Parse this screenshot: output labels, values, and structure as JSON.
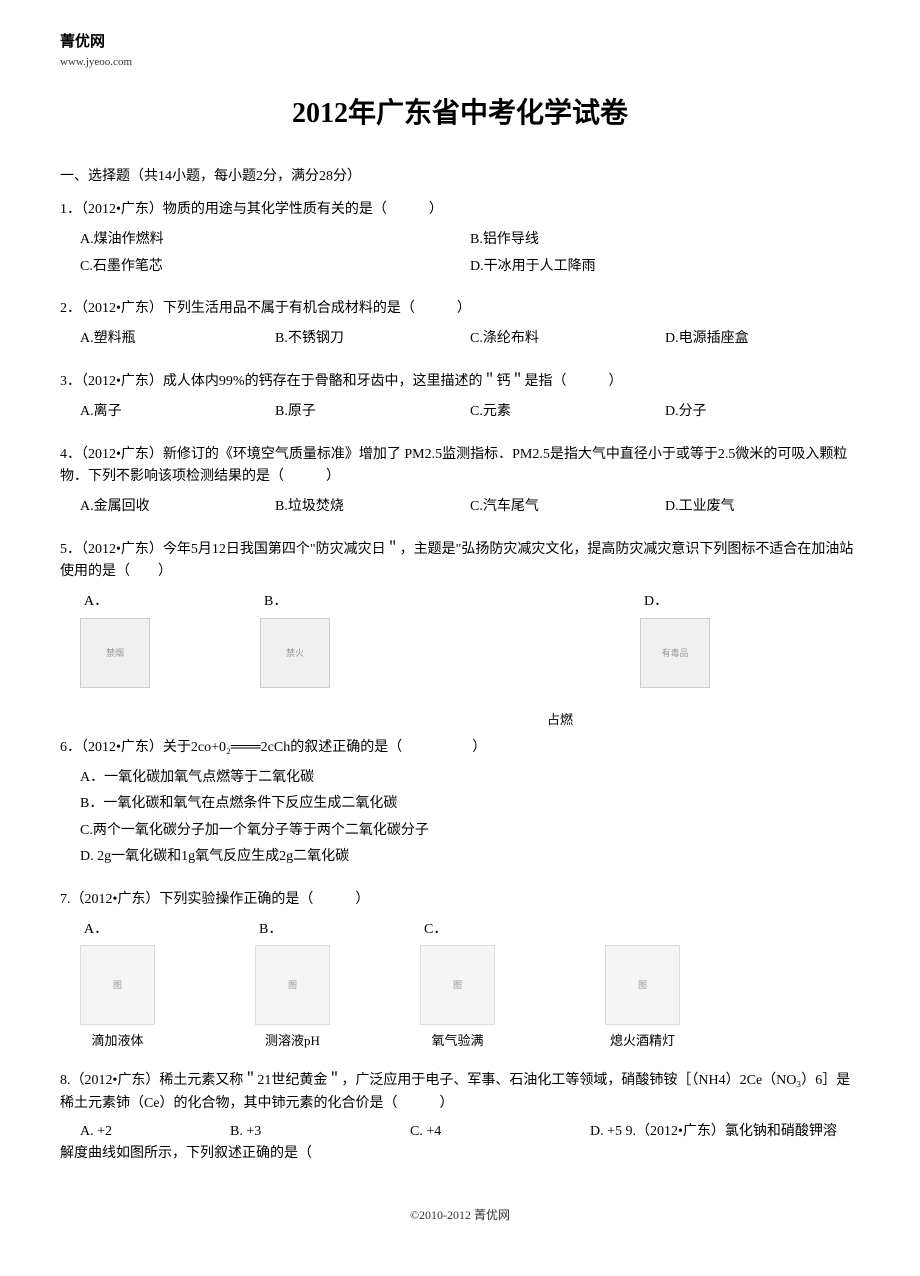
{
  "header": {
    "site_name": "菁优网",
    "site_url": "www.jyeoo.com"
  },
  "title": "2012年广东省中考化学试卷",
  "section1": {
    "header": "一、选择题（共14小题，每小题2分，满分28分）"
  },
  "q1": {
    "text": "1．（2012•广东）物质的用途与其化学性质有关的是（　　　）",
    "a": "A.煤油作燃料",
    "b": "B.铝作导线",
    "c": "C.石墨作笔芯",
    "d": "D.干冰用于人工降雨"
  },
  "q2": {
    "text": "2．（2012•广东）下列生活用品不属于有机合成材料的是（　　　）",
    "a": "A.塑料瓶",
    "b": "B.不锈钢刀",
    "c": "C.涤纶布料",
    "d": "D.电源插座盒"
  },
  "q3": {
    "text": "3．（2012•广东）成人体内99%的钙存在于骨骼和牙齿中，这里描述的＂钙＂是指（　　　）",
    "a": "A.离子",
    "b": "B.原子",
    "c": "C.元素",
    "d": "D.分子"
  },
  "q4": {
    "text": "4．（2012•广东）新修订的《环境空气质量标准》增加了 PM2.5监测指标．PM2.5是指大气中直径小于或等于2.5微米的可吸入颗粒物．下列不影响该项检测结果的是（　　　）",
    "a": "A.金属回收",
    "b": "B.垃圾焚烧",
    "c": "C.汽车尾气",
    "d": "D.工业废气"
  },
  "q5": {
    "text": "5．（2012•广东）今年5月12日我国第四个\"防灾减灾日＂，主题是\"弘扬防灾减灾文化，提高防灾减灾意识下列图标不适合在加油站使用的是（　　）",
    "a_label": "A．",
    "b_label": "B．",
    "d_label": "D．",
    "a_img": "禁烟",
    "b_img": "禁火",
    "d_img": "有毒品"
  },
  "center_text": "占燃",
  "q6": {
    "text": "6．（2012•广东）关于2co+0₂═══2cCh的叙述正确的是（　　　　　）",
    "a": "A．一氧化碳加氧气点燃等于二氧化碳",
    "b": "B．一氧化碳和氧气在点燃条件下反应生成二氧化碳",
    "c": "C.两个一氧化碳分子加一个氧分子等于两个二氧化碳分子",
    "d": "D. 2g一氧化碳和1g氧气反应生成2g二氧化碳"
  },
  "q7": {
    "text": "7.（2012•广东）下列实验操作正确的是（　　　）",
    "a_label": "A．",
    "b_label": "B．",
    "c_label": "C．",
    "a_caption": "滴加液体",
    "b_caption": "测溶液pH",
    "c_caption": "氧气验满",
    "d_caption": "熄火酒精灯"
  },
  "q8": {
    "text": "8.（2012•广东）稀土元素又称＂21世纪黄金＂，广泛应用于电子、军事、石油化工等领域，硝酸铈铵［（NH4）2Ce（NO₃）6］是稀土元素铈（Ce）的化合物，其中铈元素的化合价是（　　　）",
    "a": "A. +2",
    "b": "B. +3",
    "c": "C. +4",
    "d": "D. +5 9.（2012•广东）氯化钠和硝酸钾溶"
  },
  "q9_cont": "解度曲线如图所示，下列叙述正确的是（",
  "footer": "©2010-2012 菁优网"
}
